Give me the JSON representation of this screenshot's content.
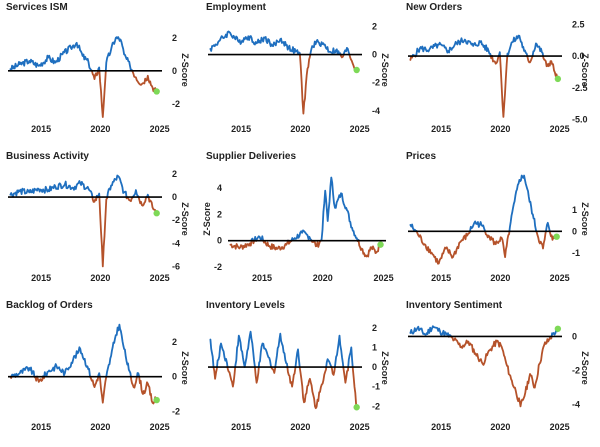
{
  "colors": {
    "positive": "#1f6fbf",
    "negative": "#b5522a",
    "latest_marker": "#7ed957",
    "zero_line": "#000000"
  },
  "chart_data": [
    {
      "type": "line",
      "title": "Services ISM",
      "ylabel": "Z-Score",
      "ylabel_rotation": "cw",
      "y_axis_side": "right",
      "x_axis_side": "bottom",
      "ylim": [
        -3.1,
        3.2
      ],
      "y_ticks": [
        -2,
        0,
        2
      ],
      "x_ticks": [
        2015,
        2020,
        2025
      ],
      "xlim": [
        2012.2,
        2025.2
      ],
      "anchors": [
        [
          2012.4,
          0.1
        ],
        [
          2013.2,
          0.4
        ],
        [
          2014.0,
          0.6
        ],
        [
          2014.8,
          0.3
        ],
        [
          2015.6,
          0.8
        ],
        [
          2016.2,
          0.5
        ],
        [
          2016.8,
          1.0
        ],
        [
          2017.5,
          1.4
        ],
        [
          2018.0,
          1.7
        ],
        [
          2018.5,
          0.9
        ],
        [
          2019.0,
          0.5
        ],
        [
          2019.5,
          -0.5
        ],
        [
          2019.9,
          0.2
        ],
        [
          2020.2,
          -2.8
        ],
        [
          2020.5,
          0.5
        ],
        [
          2020.9,
          1.3
        ],
        [
          2021.3,
          2.0
        ],
        [
          2021.7,
          1.9
        ],
        [
          2022.0,
          1.0
        ],
        [
          2022.5,
          0.3
        ],
        [
          2023.0,
          -0.4
        ],
        [
          2023.5,
          -0.8
        ],
        [
          2024.0,
          -0.3
        ],
        [
          2024.4,
          -1.0
        ],
        [
          2024.7,
          -1.2
        ]
      ],
      "latest": [
        2024.75,
        -1.25
      ]
    },
    {
      "type": "line",
      "title": "Employment",
      "ylabel": "Z-Score",
      "ylabel_rotation": "cw",
      "y_axis_side": "right",
      "x_axis_side": "bottom",
      "ylim": [
        -4.8,
        2.6
      ],
      "y_ticks": [
        -4,
        -2,
        0,
        2
      ],
      "x_ticks": [
        2015,
        2020,
        2025
      ],
      "xlim": [
        2012.2,
        2025.2
      ],
      "anchors": [
        [
          2012.4,
          0.4
        ],
        [
          2013.2,
          1.0
        ],
        [
          2014.0,
          1.6
        ],
        [
          2014.8,
          0.9
        ],
        [
          2015.6,
          1.3
        ],
        [
          2016.3,
          0.8
        ],
        [
          2017.0,
          1.2
        ],
        [
          2017.7,
          0.6
        ],
        [
          2018.3,
          1.1
        ],
        [
          2019.0,
          0.5
        ],
        [
          2019.6,
          0.2
        ],
        [
          2019.95,
          0.1
        ],
        [
          2020.25,
          -4.2
        ],
        [
          2020.6,
          -1.0
        ],
        [
          2021.0,
          0.6
        ],
        [
          2021.5,
          0.9
        ],
        [
          2022.0,
          0.7
        ],
        [
          2022.5,
          0.2
        ],
        [
          2023.0,
          0.3
        ],
        [
          2023.5,
          -0.2
        ],
        [
          2024.0,
          0.4
        ],
        [
          2024.4,
          -0.6
        ],
        [
          2024.7,
          -1.0
        ]
      ],
      "latest": [
        2024.75,
        -1.1
      ]
    },
    {
      "type": "line",
      "title": "New Orders",
      "ylabel": "Z-Score",
      "ylabel_rotation": "cw",
      "y_axis_side": "right",
      "x_axis_side": "bottom",
      "ylim": [
        -5.2,
        3.0
      ],
      "y_ticks": [
        -5.0,
        -2.5,
        0.0,
        2.5
      ],
      "y_tick_labels": [
        "-5.0",
        "-2.5",
        "0.0",
        "2.5"
      ],
      "x_ticks": [
        2015,
        2020,
        2025
      ],
      "xlim": [
        2012.2,
        2025.2
      ],
      "anchors": [
        [
          2012.4,
          -0.3
        ],
        [
          2013.2,
          0.6
        ],
        [
          2014.0,
          0.5
        ],
        [
          2014.8,
          0.9
        ],
        [
          2015.6,
          0.4
        ],
        [
          2016.3,
          1.0
        ],
        [
          2017.0,
          1.3
        ],
        [
          2017.7,
          0.8
        ],
        [
          2018.3,
          1.1
        ],
        [
          2019.0,
          0.4
        ],
        [
          2019.6,
          -0.6
        ],
        [
          2019.95,
          0.3
        ],
        [
          2020.25,
          -4.8
        ],
        [
          2020.6,
          0.2
        ],
        [
          2021.0,
          1.1
        ],
        [
          2021.6,
          1.6
        ],
        [
          2022.0,
          0.4
        ],
        [
          2022.5,
          -0.5
        ],
        [
          2023.0,
          1.0
        ],
        [
          2023.5,
          0.3
        ],
        [
          2023.9,
          -0.8
        ],
        [
          2024.3,
          -0.4
        ],
        [
          2024.6,
          -1.3
        ],
        [
          2024.8,
          -1.7
        ]
      ],
      "latest": [
        2024.85,
        -1.8
      ]
    },
    {
      "type": "line",
      "title": "Business Activity",
      "ylabel": "Z-Score",
      "ylabel_rotation": "cw",
      "y_axis_side": "right",
      "x_axis_side": "bottom",
      "ylim": [
        -6.4,
        2.6
      ],
      "y_ticks": [
        -6,
        -4,
        -2,
        0,
        2
      ],
      "x_ticks": [
        2015,
        2020,
        2025
      ],
      "xlim": [
        2012.2,
        2025.2
      ],
      "anchors": [
        [
          2012.4,
          0.2
        ],
        [
          2013.2,
          0.5
        ],
        [
          2014.0,
          0.4
        ],
        [
          2014.8,
          0.7
        ],
        [
          2015.6,
          0.6
        ],
        [
          2016.2,
          0.9
        ],
        [
          2017.0,
          1.1
        ],
        [
          2017.7,
          0.8
        ],
        [
          2018.3,
          1.2
        ],
        [
          2019.0,
          0.7
        ],
        [
          2019.5,
          -0.4
        ],
        [
          2019.9,
          0.3
        ],
        [
          2020.2,
          -6.0
        ],
        [
          2020.5,
          -0.2
        ],
        [
          2020.9,
          1.0
        ],
        [
          2021.5,
          1.8
        ],
        [
          2022.0,
          0.4
        ],
        [
          2022.5,
          -0.3
        ],
        [
          2023.0,
          0.6
        ],
        [
          2023.5,
          -0.7
        ],
        [
          2024.0,
          0.2
        ],
        [
          2024.4,
          -0.9
        ],
        [
          2024.7,
          -1.3
        ]
      ],
      "latest": [
        2024.75,
        -1.4
      ]
    },
    {
      "type": "line",
      "title": "Supplier Deliveries",
      "ylabel": "Z-Score",
      "ylabel_rotation": "ccw",
      "y_axis_side": "left",
      "x_axis_side": "bottom",
      "ylim": [
        -2.3,
        5.6
      ],
      "y_ticks": [
        -2,
        0,
        2,
        4
      ],
      "x_ticks": [
        2015,
        2020,
        2025
      ],
      "xlim": [
        2012.2,
        2025.2
      ],
      "anchors": [
        [
          2012.4,
          -0.3
        ],
        [
          2013.2,
          -0.5
        ],
        [
          2014.0,
          -0.2
        ],
        [
          2014.8,
          0.3
        ],
        [
          2015.6,
          -0.4
        ],
        [
          2016.3,
          -0.6
        ],
        [
          2017.0,
          -0.3
        ],
        [
          2017.7,
          0.2
        ],
        [
          2018.3,
          0.6
        ],
        [
          2018.9,
          0.3
        ],
        [
          2019.5,
          -0.4
        ],
        [
          2019.9,
          0.1
        ],
        [
          2020.2,
          3.8
        ],
        [
          2020.4,
          1.5
        ],
        [
          2020.7,
          4.8
        ],
        [
          2021.0,
          2.5
        ],
        [
          2021.5,
          3.6
        ],
        [
          2022.0,
          2.3
        ],
        [
          2022.4,
          1.0
        ],
        [
          2022.8,
          0.2
        ],
        [
          2023.2,
          -0.6
        ],
        [
          2023.6,
          -1.2
        ],
        [
          2024.0,
          -0.5
        ],
        [
          2024.4,
          -0.9
        ],
        [
          2024.7,
          -0.3
        ]
      ],
      "latest": [
        2024.75,
        -0.3
      ]
    },
    {
      "type": "line",
      "title": "Prices",
      "ylabel": "Z-Score",
      "ylabel_rotation": "cw",
      "y_axis_side": "right",
      "x_axis_side": "bottom",
      "ylim": [
        -1.85,
        3.0
      ],
      "y_ticks": [
        -1,
        0,
        1
      ],
      "x_ticks": [
        2015,
        2020,
        2025
      ],
      "xlim": [
        2012.2,
        2025.2
      ],
      "anchors": [
        [
          2012.4,
          0.3
        ],
        [
          2013.0,
          -0.1
        ],
        [
          2013.6,
          -0.6
        ],
        [
          2014.2,
          -1.0
        ],
        [
          2014.8,
          -1.5
        ],
        [
          2015.4,
          -0.8
        ],
        [
          2016.0,
          -1.2
        ],
        [
          2016.6,
          -0.5
        ],
        [
          2017.2,
          -0.2
        ],
        [
          2017.8,
          0.4
        ],
        [
          2018.4,
          0.3
        ],
        [
          2019.0,
          -0.2
        ],
        [
          2019.6,
          -0.6
        ],
        [
          2020.1,
          -0.3
        ],
        [
          2020.4,
          -1.2
        ],
        [
          2020.8,
          0.2
        ],
        [
          2021.2,
          1.4
        ],
        [
          2021.6,
          2.4
        ],
        [
          2022.0,
          2.6
        ],
        [
          2022.4,
          1.6
        ],
        [
          2022.8,
          0.6
        ],
        [
          2023.2,
          -0.3
        ],
        [
          2023.6,
          -0.8
        ],
        [
          2024.0,
          0.4
        ],
        [
          2024.4,
          -0.4
        ],
        [
          2024.7,
          -0.2
        ]
      ],
      "latest": [
        2024.75,
        -0.25
      ]
    },
    {
      "type": "line",
      "title": "Backlog of Orders",
      "ylabel": "Z-Score",
      "ylabel_rotation": "cw",
      "y_axis_side": "right",
      "x_axis_side": "bottom",
      "ylim": [
        -2.5,
        3.5
      ],
      "y_ticks": [
        -2,
        0,
        2
      ],
      "x_ticks": [
        2015,
        2020,
        2025
      ],
      "xlim": [
        2012.2,
        2025.2
      ],
      "anchors": [
        [
          2012.4,
          0.0
        ],
        [
          2013.2,
          0.2
        ],
        [
          2014.0,
          0.5
        ],
        [
          2014.8,
          -0.3
        ],
        [
          2015.6,
          0.3
        ],
        [
          2016.3,
          0.6
        ],
        [
          2017.0,
          0.2
        ],
        [
          2017.7,
          1.0
        ],
        [
          2018.3,
          1.6
        ],
        [
          2018.9,
          0.6
        ],
        [
          2019.5,
          -0.6
        ],
        [
          2019.9,
          0.2
        ],
        [
          2020.2,
          -1.5
        ],
        [
          2020.5,
          0.0
        ],
        [
          2020.9,
          1.2
        ],
        [
          2021.3,
          2.4
        ],
        [
          2021.6,
          3.0
        ],
        [
          2022.0,
          1.6
        ],
        [
          2022.4,
          0.4
        ],
        [
          2022.8,
          -0.6
        ],
        [
          2023.2,
          0.2
        ],
        [
          2023.6,
          -1.0
        ],
        [
          2024.0,
          -0.4
        ],
        [
          2024.4,
          -1.5
        ],
        [
          2024.7,
          -1.3
        ]
      ],
      "latest": [
        2024.75,
        -1.35
      ]
    },
    {
      "type": "line",
      "title": "Inventory Levels",
      "ylabel": "Z-Score",
      "ylabel_rotation": "cw",
      "y_axis_side": "right",
      "x_axis_side": "bottom",
      "ylim": [
        -2.7,
        2.6
      ],
      "y_ticks": [
        -2,
        -1,
        0,
        1,
        2
      ],
      "x_ticks": [
        2015,
        2020,
        2025
      ],
      "xlim": [
        2012.2,
        2025.2
      ],
      "anchors": [
        [
          2012.4,
          1.4
        ],
        [
          2012.8,
          -0.6
        ],
        [
          2013.3,
          1.2
        ],
        [
          2013.8,
          0.2
        ],
        [
          2014.3,
          -1.0
        ],
        [
          2014.8,
          1.6
        ],
        [
          2015.3,
          0.0
        ],
        [
          2015.8,
          1.8
        ],
        [
          2016.3,
          -0.8
        ],
        [
          2016.8,
          1.2
        ],
        [
          2017.3,
          0.5
        ],
        [
          2017.8,
          -0.3
        ],
        [
          2018.3,
          1.7
        ],
        [
          2018.8,
          0.2
        ],
        [
          2019.3,
          -1.0
        ],
        [
          2019.8,
          0.9
        ],
        [
          2020.3,
          -1.8
        ],
        [
          2020.8,
          -0.6
        ],
        [
          2021.3,
          -2.1
        ],
        [
          2021.8,
          -0.9
        ],
        [
          2022.3,
          0.4
        ],
        [
          2022.8,
          -0.4
        ],
        [
          2023.3,
          1.6
        ],
        [
          2023.8,
          -0.8
        ],
        [
          2024.3,
          1.0
        ],
        [
          2024.7,
          -1.9
        ]
      ],
      "latest": [
        2024.75,
        -2.05
      ]
    },
    {
      "type": "line",
      "title": "Inventory Sentiment",
      "ylabel": "Z-Score",
      "ylabel_rotation": "cw",
      "y_axis_side": "right",
      "x_axis_side": "bottom",
      "ylim": [
        -4.9,
        1.2
      ],
      "y_ticks": [
        -4,
        -2,
        0
      ],
      "x_ticks": [
        2015,
        2020,
        2025
      ],
      "xlim": [
        2012.2,
        2025.2
      ],
      "anchors": [
        [
          2012.4,
          0.2
        ],
        [
          2013.0,
          0.5
        ],
        [
          2013.7,
          0.1
        ],
        [
          2014.3,
          0.6
        ],
        [
          2014.9,
          0.3
        ],
        [
          2015.5,
          0.1
        ],
        [
          2016.1,
          -0.2
        ],
        [
          2016.7,
          -0.6
        ],
        [
          2017.3,
          -0.3
        ],
        [
          2017.9,
          -1.0
        ],
        [
          2018.5,
          -1.6
        ],
        [
          2019.1,
          -0.8
        ],
        [
          2019.7,
          -0.3
        ],
        [
          2020.1,
          -0.6
        ],
        [
          2020.5,
          -1.6
        ],
        [
          2020.9,
          -2.5
        ],
        [
          2021.3,
          -3.2
        ],
        [
          2021.7,
          -4.1
        ],
        [
          2022.1,
          -3.3
        ],
        [
          2022.5,
          -2.2
        ],
        [
          2022.9,
          -3.0
        ],
        [
          2023.3,
          -1.6
        ],
        [
          2023.7,
          -0.5
        ],
        [
          2024.1,
          -0.2
        ],
        [
          2024.5,
          0.2
        ],
        [
          2024.8,
          0.3
        ]
      ],
      "latest": [
        2024.85,
        0.45
      ]
    }
  ]
}
